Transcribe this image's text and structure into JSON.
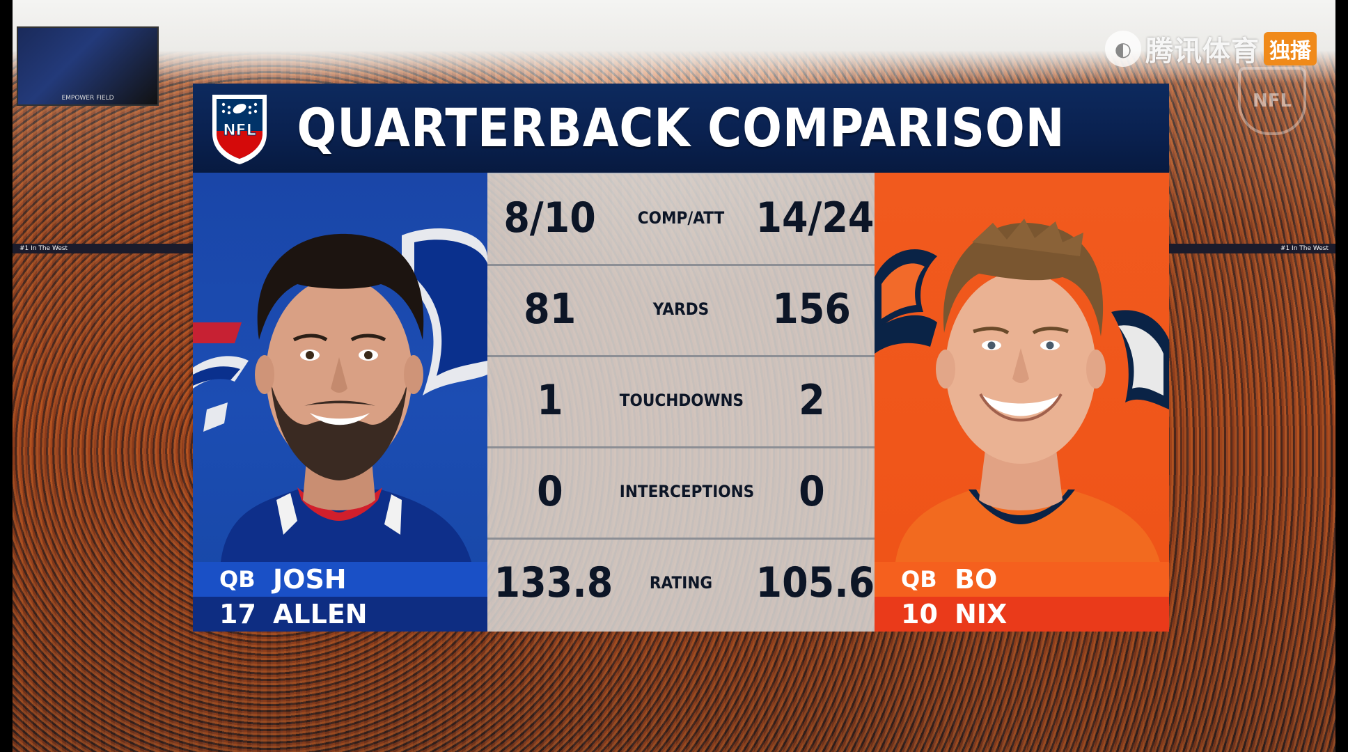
{
  "header": {
    "title": "QUARTERBACK COMPARISON",
    "logo_text": "NFL"
  },
  "watermark": {
    "text": "腾讯体育",
    "badge": "独播"
  },
  "stadium": {
    "scoreboard_text": "EMPOWER FIELD",
    "ribbon_left": "#1 In The West",
    "ribbon_right": "#1 In The West"
  },
  "colors": {
    "bills_blue": "#1c4db3",
    "broncos_orange": "#f15a1e",
    "header_navy": "#0a2150"
  },
  "players": {
    "left": {
      "position": "QB",
      "number": "17",
      "first_name": "JOSH",
      "last_name": "ALLEN",
      "team_logo": "bills-logo-icon"
    },
    "right": {
      "position": "QB",
      "number": "10",
      "first_name": "BO",
      "last_name": "NIX",
      "team_logo": "broncos-logo-icon"
    }
  },
  "stats": [
    {
      "label": "COMP/ATT",
      "left": "8/10",
      "right": "14/24"
    },
    {
      "label": "YARDS",
      "left": "81",
      "right": "156"
    },
    {
      "label": "TOUCHDOWNS",
      "left": "1",
      "right": "2"
    },
    {
      "label": "INTERCEPTIONS",
      "left": "0",
      "right": "0"
    },
    {
      "label": "RATING",
      "left": "133.8",
      "right": "105.6"
    }
  ]
}
